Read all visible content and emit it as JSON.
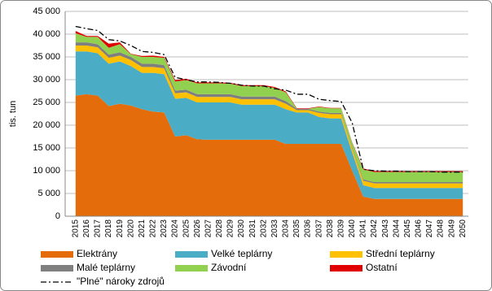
{
  "chart_data": {
    "type": "area",
    "stacked": true,
    "y_label": "tis. tun",
    "categories": [
      "2015",
      "2016",
      "2017",
      "2018",
      "2019",
      "2020",
      "2021",
      "2022",
      "2023",
      "2024",
      "2025",
      "2026",
      "2027",
      "2028",
      "2029",
      "2030",
      "2031",
      "2032",
      "2033",
      "2034",
      "2035",
      "2036",
      "2037",
      "2038",
      "2039",
      "2040",
      "2041",
      "2042",
      "2043",
      "2044",
      "2045",
      "2046",
      "2047",
      "2048",
      "2049",
      "2050"
    ],
    "series": [
      {
        "name": "Elektrány",
        "color": "#e46c0a",
        "values": [
          26500,
          26800,
          26500,
          24200,
          24700,
          24300,
          23500,
          23000,
          22800,
          17500,
          17800,
          16900,
          16800,
          16800,
          16800,
          16800,
          16800,
          16800,
          16800,
          15900,
          15900,
          15900,
          15900,
          15900,
          15900,
          10000,
          4300,
          3800,
          3800,
          3800,
          3800,
          3800,
          3800,
          3800,
          3800,
          3800
        ]
      },
      {
        "name": "Velké teplárny",
        "color": "#4bacc6",
        "values": [
          9700,
          9400,
          9300,
          9300,
          9300,
          8700,
          8000,
          8500,
          8400,
          8300,
          8200,
          8100,
          8200,
          8200,
          8200,
          7700,
          7700,
          7700,
          7700,
          7600,
          6900,
          6900,
          5900,
          5600,
          5600,
          4000,
          2500,
          2400,
          2400,
          2400,
          2400,
          2400,
          2400,
          2400,
          2400,
          2400
        ]
      },
      {
        "name": "Střední teplárny",
        "color": "#ffc000",
        "values": [
          1300,
          1300,
          1300,
          1300,
          1300,
          1300,
          1300,
          1300,
          1300,
          1200,
          1200,
          1200,
          1200,
          1200,
          1200,
          1200,
          1200,
          1200,
          1200,
          1200,
          500,
          500,
          900,
          900,
          900,
          800,
          1000,
          1000,
          1000,
          1000,
          1000,
          1000,
          1000,
          1000,
          1000,
          1000
        ]
      },
      {
        "name": "Malé teplárny",
        "color": "#7f7f7f",
        "values": [
          700,
          700,
          700,
          700,
          700,
          700,
          700,
          700,
          700,
          600,
          600,
          600,
          600,
          600,
          600,
          600,
          600,
          600,
          600,
          600,
          300,
          300,
          300,
          300,
          300,
          300,
          300,
          300,
          300,
          300,
          300,
          300,
          300,
          300,
          300,
          300
        ]
      },
      {
        "name": "Závodní",
        "color": "#92d050",
        "values": [
          2000,
          1200,
          1600,
          1500,
          1800,
          600,
          1500,
          1500,
          1600,
          2000,
          2100,
          2400,
          2400,
          2400,
          2300,
          2300,
          2300,
          2300,
          1900,
          1900,
          0,
          0,
          1000,
          1000,
          1000,
          1000,
          2200,
          2200,
          2200,
          2200,
          2200,
          2200,
          2200,
          2200,
          2200,
          2200
        ]
      },
      {
        "name": "Ostatní",
        "color": "#e00000",
        "values": [
          500,
          200,
          200,
          900,
          400,
          100,
          200,
          300,
          200,
          300,
          300,
          200,
          200,
          200,
          200,
          200,
          200,
          200,
          200,
          200,
          100,
          100,
          100,
          100,
          100,
          100,
          200,
          200,
          200,
          200,
          200,
          200,
          200,
          200,
          200,
          200
        ]
      }
    ],
    "line_series": {
      "name": "\"Plné\" nároky zdrojů",
      "color": "#000000",
      "values": [
        41700,
        41200,
        40800,
        38800,
        38500,
        37500,
        36200,
        36000,
        35500,
        30500,
        30000,
        29500,
        29500,
        29400,
        29200,
        28800,
        28600,
        28600,
        28000,
        27700,
        26800,
        26800,
        25700,
        25400,
        25200,
        20500,
        10300,
        10000,
        9900,
        9900,
        9800,
        9800,
        9800,
        9700,
        9700,
        9700
      ]
    },
    "ylim": [
      0,
      45000
    ],
    "yticks": [
      0,
      {
        "value": 5000,
        "label": "5 000"
      },
      {
        "value": 10000,
        "label": "10 000"
      },
      {
        "value": 15000,
        "label": "15 000"
      },
      {
        "value": 20000,
        "label": "20 000"
      },
      {
        "value": 25000,
        "label": "25 000"
      },
      {
        "value": 30000,
        "label": "30 000"
      },
      {
        "value": 35000,
        "label": "35 000"
      },
      {
        "value": 40000,
        "label": "40 000"
      },
      {
        "value": 45000,
        "label": "45 000"
      }
    ],
    "grid": true
  }
}
